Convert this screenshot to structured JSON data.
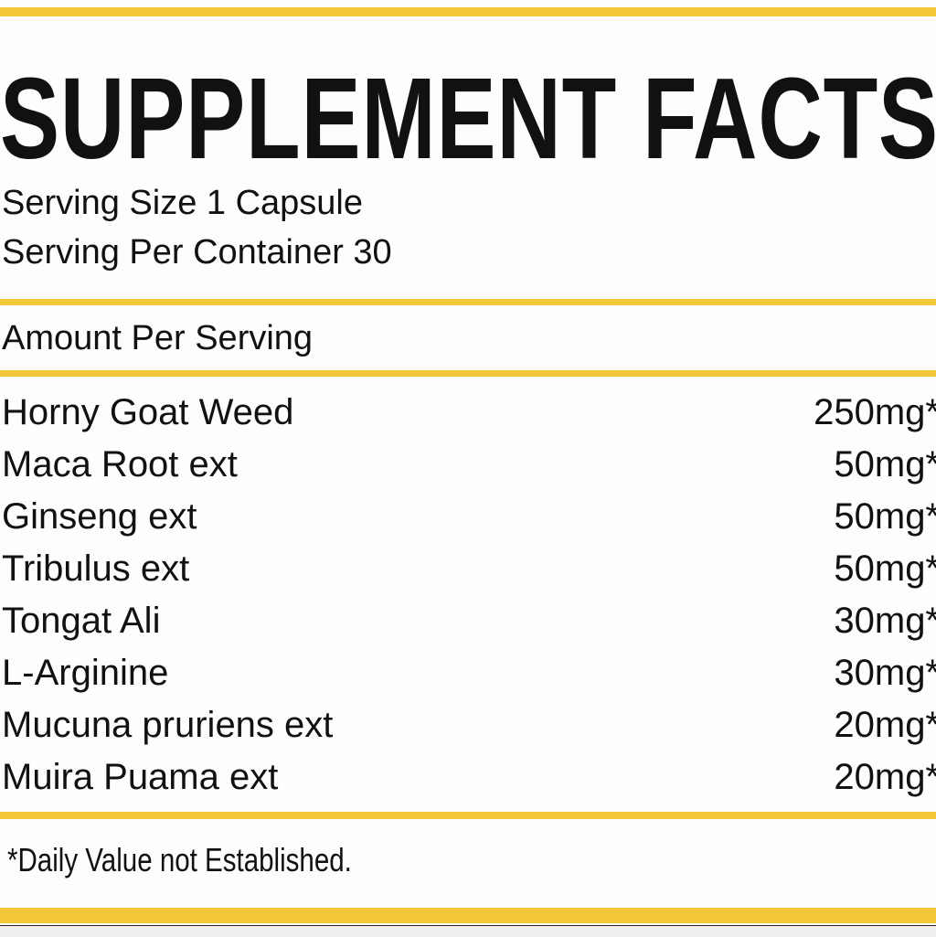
{
  "title": "SUPPLEMENT FACTS",
  "serving_size": "Serving Size 1 Capsule",
  "servings_per_container": "Serving Per Container 30",
  "amount_header": "Amount Per Serving",
  "ingredients": [
    {
      "name": "Horny Goat Weed",
      "amount": "250mg*"
    },
    {
      "name": "Maca Root ext",
      "amount": "50mg*"
    },
    {
      "name": "Ginseng ext",
      "amount": "50mg*"
    },
    {
      "name": "Tribulus ext",
      "amount": "50mg*"
    },
    {
      "name": "Tongat Ali",
      "amount": "30mg*"
    },
    {
      "name": "L-Arginine",
      "amount": "30mg*"
    },
    {
      "name": "Mucuna pruriens ext",
      "amount": "20mg*"
    },
    {
      "name": "Muira Puama ext",
      "amount": "20mg*"
    }
  ],
  "footnote": "*Daily Value not Established.",
  "colors": {
    "accent": "#f2c83a",
    "text": "#111111",
    "background": "#fdfdfd"
  }
}
